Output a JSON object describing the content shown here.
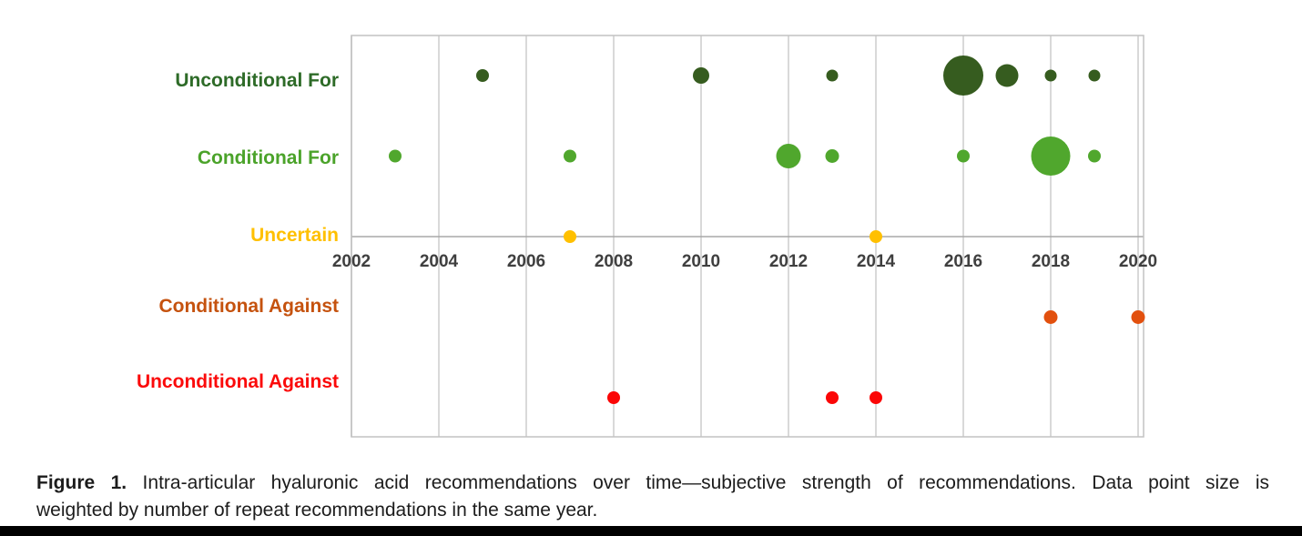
{
  "caption": {
    "label": "Figure 1.",
    "line1_rest": " Intra-articular hyaluronic acid recommendations over time—subjective strength of recommendations. Data point size is",
    "line2": "weighted by number of repeat recommendations in the same year."
  },
  "chart_data": {
    "type": "scatter",
    "subtype": "bubble-timeline",
    "title": "",
    "xlabel": "",
    "ylabel": "",
    "x_axis": {
      "range": [
        2002,
        2020
      ],
      "ticks": [
        2002,
        2004,
        2006,
        2008,
        2010,
        2012,
        2014,
        2016,
        2018,
        2020
      ],
      "gridlines": true,
      "axis_cross_row": "Uncertain"
    },
    "size_encoding": "dot radius weighted by number of repeat recommendations in the same year",
    "legend": "none",
    "style": {
      "grid_color": "#d9d9d9",
      "axis_color": "#a8a8a8",
      "border_color": "#c2c2c2",
      "tick_color": "#3f3f3f",
      "background": "#ffffff"
    },
    "categories": [
      {
        "label": "Unconditional For",
        "label_color": "#2e6b28",
        "dot_color": "#365c1f",
        "points": [
          {
            "year": 2005,
            "size_weight": 1,
            "radius_px": 7
          },
          {
            "year": 2010,
            "size_weight": 1,
            "radius_px": 9
          },
          {
            "year": 2013,
            "size_weight": 1,
            "radius_px": 6.5
          },
          {
            "year": 2016,
            "size_weight": 4,
            "radius_px": 22
          },
          {
            "year": 2017,
            "size_weight": 2,
            "radius_px": 12.5
          },
          {
            "year": 2018,
            "size_weight": 1,
            "radius_px": 6.5
          },
          {
            "year": 2019,
            "size_weight": 1,
            "radius_px": 6.5
          }
        ]
      },
      {
        "label": "Conditional For",
        "label_color": "#4ba32a",
        "dot_color": "#50a72d",
        "points": [
          {
            "year": 2003,
            "size_weight": 1,
            "radius_px": 7
          },
          {
            "year": 2007,
            "size_weight": 1,
            "radius_px": 7
          },
          {
            "year": 2012,
            "size_weight": 2,
            "radius_px": 13.5
          },
          {
            "year": 2013,
            "size_weight": 1,
            "radius_px": 7.5
          },
          {
            "year": 2016,
            "size_weight": 1,
            "radius_px": 7
          },
          {
            "year": 2018,
            "size_weight": 4,
            "radius_px": 21.5
          },
          {
            "year": 2019,
            "size_weight": 1,
            "radius_px": 7
          }
        ]
      },
      {
        "label": "Uncertain",
        "label_color": "#ffc000",
        "dot_color": "#ffc000",
        "points": [
          {
            "year": 2007,
            "size_weight": 1,
            "radius_px": 7
          },
          {
            "year": 2014,
            "size_weight": 1,
            "radius_px": 7
          }
        ]
      },
      {
        "label": "Conditional Against",
        "label_color": "#c5520e",
        "dot_color": "#e2500e",
        "points": [
          {
            "year": 2018,
            "size_weight": 1,
            "radius_px": 7.5
          },
          {
            "year": 2020,
            "size_weight": 1,
            "radius_px": 7.5
          }
        ]
      },
      {
        "label": "Unconditional Against",
        "label_color": "#fb0a0a",
        "dot_color": "#fb0606",
        "points": [
          {
            "year": 2008,
            "size_weight": 1,
            "radius_px": 7
          },
          {
            "year": 2013,
            "size_weight": 1,
            "radius_px": 7
          },
          {
            "year": 2014,
            "size_weight": 1,
            "radius_px": 7
          }
        ]
      }
    ]
  }
}
